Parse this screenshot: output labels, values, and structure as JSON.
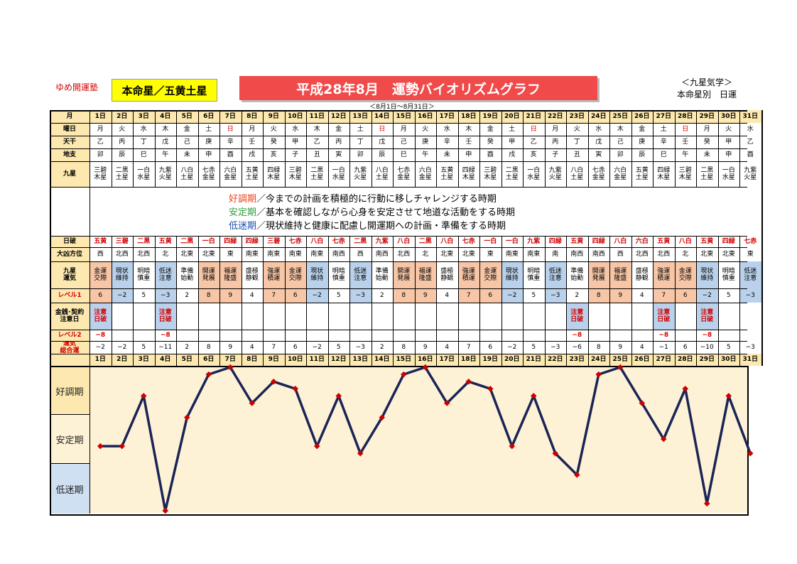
{
  "header": {
    "brand": "ゆめ開運塾",
    "main_star": "本命星／五黄土星",
    "title": "平成28年8月　運勢バイオリズムグラフ",
    "subtitle": "＜8月1日～8月31日＞",
    "note1": "＜九星気学＞",
    "note2": "本命星別　日運"
  },
  "row_labels": {
    "month": "月",
    "weekday": "曜日",
    "tenkan": "天干",
    "chishi": "地支",
    "kyusei": "九星",
    "nippa": "日破",
    "daikyo": "大凶方位",
    "unki": "九星\n運気",
    "level1": "レベル1",
    "kinsen": "金銭･契約\n注意日",
    "level2": "レベル2",
    "total": "運気\n総合運"
  },
  "legend": [
    {
      "key": "好調期",
      "text": "／今までの計画を積極的に行動に移しチャレンジする時期",
      "color": "#e8451e"
    },
    {
      "key": "安定期",
      "text": "／基本を確認しながら心身を安定させて地道な活動をする時期",
      "color": "#2e9e3a"
    },
    {
      "key": "低迷期",
      "text": "／現状維持と健康に配慮し開運期への計画・準備をする時期",
      "color": "#1b4fb0"
    }
  ],
  "colors": {
    "label_bg": "#fde9b0",
    "good_bg": "#f7c6a6",
    "bad_bg": "#b9d1ea",
    "neutral_bg": "#ffffff",
    "band_good": "#fde9b0",
    "band_stable": "#fdf2d6",
    "band_low": "#cfe0f3",
    "line": "#1a2456",
    "marker": "#cc0000",
    "red_text": "#d40000"
  },
  "chart_data": {
    "type": "line",
    "x": [
      "1日",
      "2日",
      "3日",
      "4日",
      "5日",
      "6日",
      "7日",
      "8日",
      "9日",
      "10日",
      "11日",
      "12日",
      "13日",
      "14日",
      "15日",
      "16日",
      "17日",
      "18日",
      "19日",
      "20日",
      "21日",
      "22日",
      "23日",
      "24日",
      "25日",
      "26日",
      "27日",
      "28日",
      "29日",
      "30日",
      "31日"
    ],
    "values": [
      -2,
      -2,
      5,
      -11,
      2,
      8,
      9,
      4,
      7,
      6,
      -2,
      5,
      -3,
      2,
      8,
      9,
      4,
      7,
      6,
      -2,
      5,
      -3,
      -6,
      8,
      9,
      4,
      -1,
      6,
      -10,
      5,
      -3
    ],
    "bands": [
      "好調期",
      "安定期",
      "低迷期"
    ],
    "ylim": [
      -11,
      9
    ]
  },
  "days": [
    {
      "d": "1日",
      "wd": "月",
      "tk": "乙",
      "cs": "卯",
      "ks": "三碧\n木星",
      "np": "五黄",
      "dk": "西",
      "un": "金運\n交際",
      "l1": "6",
      "kn": "注意\n日破",
      "l2": "−8",
      "tot": "−2",
      "sun": false
    },
    {
      "d": "2日",
      "wd": "火",
      "tk": "丙",
      "cs": "辰",
      "ks": "二黒\n土星",
      "np": "三碧",
      "dk": "北西",
      "un": "現状\n維持",
      "l1": "−2",
      "kn": "",
      "l2": "",
      "tot": "−2",
      "sun": false
    },
    {
      "d": "3日",
      "wd": "水",
      "tk": "丁",
      "cs": "巳",
      "ks": "一白\n水星",
      "np": "二黒",
      "dk": "北西",
      "un": "明暗\n慎重",
      "l1": "5",
      "kn": "",
      "l2": "",
      "tot": "5",
      "sun": false
    },
    {
      "d": "4日",
      "wd": "木",
      "tk": "戊",
      "cs": "午",
      "ks": "九紫\n火星",
      "np": "五黄",
      "dk": "北",
      "un": "低迷\n注意",
      "l1": "−3",
      "kn": "注意\n日破",
      "l2": "−8",
      "tot": "−11",
      "sun": false
    },
    {
      "d": "5日",
      "wd": "金",
      "tk": "己",
      "cs": "未",
      "ks": "八白\n土星",
      "np": "二黒",
      "dk": "北東",
      "un": "準備\n始動",
      "l1": "2",
      "kn": "",
      "l2": "",
      "tot": "2",
      "sun": false
    },
    {
      "d": "6日",
      "wd": "土",
      "tk": "庚",
      "cs": "申",
      "ks": "七赤\n金星",
      "np": "一白",
      "dk": "北東",
      "un": "開運\n発展",
      "l1": "8",
      "kn": "",
      "l2": "",
      "tot": "8",
      "sun": false
    },
    {
      "d": "7日",
      "wd": "日",
      "tk": "辛",
      "cs": "酉",
      "ks": "六白\n金星",
      "np": "四緑",
      "dk": "東",
      "un": "福運\n隆盛",
      "l1": "9",
      "kn": "",
      "l2": "",
      "tot": "9",
      "sun": true
    },
    {
      "d": "8日",
      "wd": "月",
      "tk": "壬",
      "cs": "戌",
      "ks": "五黄\n土星",
      "np": "四緑",
      "dk": "南東",
      "un": "盛極\n静観",
      "l1": "4",
      "kn": "",
      "l2": "",
      "tot": "4",
      "sun": false
    },
    {
      "d": "9日",
      "wd": "火",
      "tk": "癸",
      "cs": "亥",
      "ks": "四緑\n木星",
      "np": "三碧",
      "dk": "南東",
      "un": "強運\n積運",
      "l1": "7",
      "kn": "",
      "l2": "",
      "tot": "7",
      "sun": false
    },
    {
      "d": "10日",
      "wd": "水",
      "tk": "甲",
      "cs": "子",
      "ks": "三碧\n木星",
      "np": "七赤",
      "dk": "南東",
      "un": "金運\n交際",
      "l1": "6",
      "kn": "",
      "l2": "",
      "tot": "6",
      "sun": false
    },
    {
      "d": "11日",
      "wd": "木",
      "tk": "乙",
      "cs": "丑",
      "ks": "二黒\n土星",
      "np": "八白",
      "dk": "南東",
      "un": "現状\n維持",
      "l1": "−2",
      "kn": "",
      "l2": "",
      "tot": "−2",
      "sun": false
    },
    {
      "d": "12日",
      "wd": "金",
      "tk": "丙",
      "cs": "寅",
      "ks": "一白\n水星",
      "np": "七赤",
      "dk": "南西",
      "un": "明暗\n慎重",
      "l1": "5",
      "kn": "",
      "l2": "",
      "tot": "5",
      "sun": false
    },
    {
      "d": "13日",
      "wd": "土",
      "tk": "丁",
      "cs": "卯",
      "ks": "九紫\n火星",
      "np": "二黒",
      "dk": "西",
      "un": "低迷\n注意",
      "l1": "−3",
      "kn": "",
      "l2": "",
      "tot": "−3",
      "sun": false
    },
    {
      "d": "14日",
      "wd": "日",
      "tk": "戊",
      "cs": "辰",
      "ks": "八白\n土星",
      "np": "九紫",
      "dk": "南西",
      "un": "準備\n始動",
      "l1": "2",
      "kn": "",
      "l2": "",
      "tot": "2",
      "sun": true
    },
    {
      "d": "15日",
      "wd": "月",
      "tk": "己",
      "cs": "巳",
      "ks": "七赤\n金星",
      "np": "八白",
      "dk": "北西",
      "un": "開運\n発展",
      "l1": "8",
      "kn": "",
      "l2": "",
      "tot": "8",
      "sun": false
    },
    {
      "d": "16日",
      "wd": "火",
      "tk": "庚",
      "cs": "午",
      "ks": "六白\n金星",
      "np": "二黒",
      "dk": "北",
      "un": "福運\n隆盛",
      "l1": "9",
      "kn": "",
      "l2": "",
      "tot": "9",
      "sun": false
    },
    {
      "d": "17日",
      "wd": "水",
      "tk": "辛",
      "cs": "未",
      "ks": "五黄\n土星",
      "np": "八白",
      "dk": "北東",
      "un": "盛極\n静観",
      "l1": "4",
      "kn": "",
      "l2": "",
      "tot": "4",
      "sun": false
    },
    {
      "d": "18日",
      "wd": "木",
      "tk": "壬",
      "cs": "申",
      "ks": "四緑\n木星",
      "np": "七赤",
      "dk": "北東",
      "un": "強運\n積運",
      "l1": "7",
      "kn": "",
      "l2": "",
      "tot": "7",
      "sun": false
    },
    {
      "d": "19日",
      "wd": "金",
      "tk": "癸",
      "cs": "酉",
      "ks": "三碧\n木星",
      "np": "一白",
      "dk": "東",
      "un": "金運\n交際",
      "l1": "6",
      "kn": "",
      "l2": "",
      "tot": "6",
      "sun": false
    },
    {
      "d": "20日",
      "wd": "土",
      "tk": "甲",
      "cs": "戌",
      "ks": "二黒\n土星",
      "np": "一白",
      "dk": "南東",
      "un": "現状\n維持",
      "l1": "−2",
      "kn": "",
      "l2": "",
      "tot": "−2",
      "sun": false
    },
    {
      "d": "21日",
      "wd": "日",
      "tk": "乙",
      "cs": "亥",
      "ks": "一白\n水星",
      "np": "九紫",
      "dk": "南東",
      "un": "明暗\n慎重",
      "l1": "5",
      "kn": "",
      "l2": "",
      "tot": "5",
      "sun": true
    },
    {
      "d": "22日",
      "wd": "月",
      "tk": "丙",
      "cs": "子",
      "ks": "九紫\n火星",
      "np": "四緑",
      "dk": "南",
      "un": "低迷\n注意",
      "l1": "−3",
      "kn": "",
      "l2": "",
      "tot": "−3",
      "sun": false
    },
    {
      "d": "23日",
      "wd": "火",
      "tk": "丁",
      "cs": "丑",
      "ks": "八白\n土星",
      "np": "五黄",
      "dk": "南西",
      "un": "準備\n始動",
      "l1": "2",
      "kn": "注意\n日破",
      "l2": "−8",
      "tot": "−6",
      "sun": false
    },
    {
      "d": "24日",
      "wd": "水",
      "tk": "戊",
      "cs": "寅",
      "ks": "七赤\n金星",
      "np": "四緑",
      "dk": "南西",
      "un": "開運\n発展",
      "l1": "8",
      "kn": "",
      "l2": "",
      "tot": "8",
      "sun": false
    },
    {
      "d": "25日",
      "wd": "木",
      "tk": "己",
      "cs": "卯",
      "ks": "六白\n金星",
      "np": "八白",
      "dk": "西",
      "un": "福運\n隆盛",
      "l1": "9",
      "kn": "",
      "l2": "",
      "tot": "9",
      "sun": false
    },
    {
      "d": "26日",
      "wd": "金",
      "tk": "庚",
      "cs": "辰",
      "ks": "五黄\n土星",
      "np": "六白",
      "dk": "北西",
      "un": "盛極\n静観",
      "l1": "4",
      "kn": "",
      "l2": "",
      "tot": "4",
      "sun": false
    },
    {
      "d": "27日",
      "wd": "土",
      "tk": "辛",
      "cs": "巳",
      "ks": "四緑\n木星",
      "np": "五黄",
      "dk": "北西",
      "un": "強運\n積運",
      "l1": "7",
      "kn": "注意\n日破",
      "l2": "−8",
      "tot": "−1",
      "sun": false
    },
    {
      "d": "28日",
      "wd": "日",
      "tk": "壬",
      "cs": "午",
      "ks": "三碧\n木星",
      "np": "八白",
      "dk": "北",
      "un": "金運\n交際",
      "l1": "6",
      "kn": "",
      "l2": "",
      "tot": "6",
      "sun": true
    },
    {
      "d": "29日",
      "wd": "月",
      "tk": "癸",
      "cs": "未",
      "ks": "二黒\n土星",
      "np": "五黄",
      "dk": "北東",
      "un": "現状\n維持",
      "l1": "−2",
      "kn": "注意\n日破",
      "l2": "−8",
      "tot": "−10",
      "sun": false
    },
    {
      "d": "30日",
      "wd": "火",
      "tk": "甲",
      "cs": "申",
      "ks": "一白\n水星",
      "np": "四緑",
      "dk": "北東",
      "un": "明暗\n慎重",
      "l1": "5",
      "kn": "",
      "l2": "",
      "tot": "5",
      "sun": false
    },
    {
      "d": "31日",
      "wd": "水",
      "tk": "乙",
      "cs": "酉",
      "ks": "九紫\n火星",
      "np": "七赤",
      "dk": "東",
      "un": "低迷\n注意",
      "l1": "−3",
      "kn": "",
      "l2": "",
      "tot": "−3",
      "sun": false
    }
  ]
}
